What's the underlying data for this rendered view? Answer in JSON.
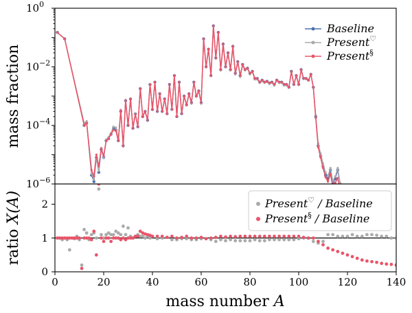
{
  "chart_data": [
    {
      "type": "line",
      "ylabel": "mass fraction",
      "yscale": "log",
      "xlim": [
        0,
        140
      ],
      "ylim": [
        1e-06,
        1
      ],
      "ytick_labels": [
        {
          "base": "10",
          "exp": "0",
          "value": 1
        },
        {
          "base": "10",
          "exp": "−2",
          "value": 0.01
        },
        {
          "base": "10",
          "exp": "−4",
          "value": 0.0001
        },
        {
          "base": "10",
          "exp": "−6",
          "value": 1e-06
        }
      ],
      "legend_position": "top-right",
      "series": [
        {
          "name": "Baseline",
          "sup": "",
          "color": "#4c72b0",
          "x": [
            1,
            4,
            12,
            13,
            15,
            16,
            17,
            18,
            19,
            20,
            21,
            22,
            23,
            24,
            25,
            26,
            27,
            28,
            29,
            30,
            31,
            32,
            33,
            34,
            35,
            36,
            37,
            38,
            39,
            40,
            41,
            42,
            43,
            44,
            45,
            46,
            47,
            48,
            49,
            50,
            51,
            52,
            53,
            54,
            55,
            56,
            57,
            58,
            59,
            60,
            61,
            62,
            63,
            64,
            65,
            66,
            67,
            68,
            69,
            70,
            71,
            72,
            73,
            74,
            75,
            76,
            77,
            78,
            79,
            80,
            81,
            82,
            83,
            84,
            85,
            86,
            87,
            88,
            89,
            90,
            91,
            92,
            93,
            94,
            95,
            96,
            97,
            98,
            99,
            100,
            101,
            102,
            103,
            104,
            105,
            106,
            107,
            108,
            109,
            110,
            111,
            112,
            113,
            114,
            115,
            116,
            117
          ],
          "y": [
            0.15,
            0.09,
            0.0001,
            0.00012,
            2e-06,
            1.2e-06,
            8e-06,
            2.5e-06,
            1.5e-05,
            8e-06,
            3e-05,
            3.5e-05,
            5e-05,
            8e-05,
            7e-05,
            3e-05,
            0.0003,
            2e-05,
            0.0007,
            0.0001,
            0.0008,
            8e-05,
            0.00025,
            9e-05,
            0.0018,
            0.0002,
            0.0003,
            0.00015,
            0.0025,
            0.00035,
            0.003,
            0.0003,
            0.0012,
            0.0003,
            0.0008,
            0.00025,
            0.0025,
            0.00035,
            0.005,
            0.0002,
            0.003,
            0.00025,
            0.001,
            0.0005,
            0.0012,
            0.0006,
            0.003,
            0.001,
            0.0015,
            0.0006,
            0.09,
            0.01,
            0.04,
            0.005,
            0.25,
            0.02,
            0.15,
            0.008,
            0.06,
            0.01,
            0.03,
            0.008,
            0.05,
            0.006,
            0.015,
            0.005,
            0.012,
            0.008,
            0.009,
            0.006,
            0.007,
            0.004,
            0.004,
            0.003,
            0.0035,
            0.003,
            0.0032,
            0.0028,
            0.003,
            0.0025,
            0.0035,
            0.003,
            0.003,
            0.0025,
            0.0025,
            0.002,
            0.007,
            0.0025,
            0.005,
            0.0025,
            0.008,
            0.004,
            0.004,
            0.0035,
            0.0055,
            0.002,
            0.0002,
            2e-05,
            9e-06,
            4e-06,
            2e-06,
            1.5e-06,
            3e-06,
            1e-06,
            1.5e-06,
            3e-06,
            1e-06
          ]
        },
        {
          "name": "Present",
          "sup": "♡",
          "color": "#aaaaaa",
          "x": [
            1,
            4,
            12,
            13,
            15,
            16,
            17,
            18,
            19,
            20,
            21,
            22,
            23,
            24,
            25,
            26,
            27,
            28,
            29,
            30,
            31,
            32,
            33,
            34,
            35,
            36,
            37,
            38,
            39,
            40,
            41,
            42,
            43,
            44,
            45,
            46,
            47,
            48,
            49,
            50,
            51,
            52,
            53,
            54,
            55,
            56,
            57,
            58,
            59,
            60,
            61,
            62,
            63,
            64,
            65,
            66,
            67,
            68,
            69,
            70,
            71,
            72,
            73,
            74,
            75,
            76,
            77,
            78,
            79,
            80,
            81,
            82,
            83,
            84,
            85,
            86,
            87,
            88,
            89,
            90,
            91,
            92,
            93,
            94,
            95,
            96,
            97,
            98,
            99,
            100,
            101,
            102,
            103,
            104,
            105,
            106,
            107,
            108,
            109,
            110,
            111,
            112,
            113,
            114,
            115,
            116,
            117
          ],
          "y": [
            0.15,
            0.09,
            0.00012,
            0.00014,
            2.2e-06,
            1.4e-06,
            8e-06,
            2.8e-06,
            1.7e-05,
            8e-06,
            3.3e-05,
            4e-05,
            5.5e-05,
            9e-05,
            8.5e-05,
            3.5e-05,
            0.00034,
            2.2e-05,
            0.00075,
            0.00011,
            0.00082,
            8.5e-05,
            0.00026,
            9.5e-05,
            0.0019,
            0.00021,
            0.00031,
            0.00016,
            0.0026,
            0.00036,
            0.0029,
            0.0003,
            0.00115,
            0.0003,
            0.00078,
            0.00024,
            0.0024,
            0.00034,
            0.0048,
            0.0002,
            0.0028,
            0.00024,
            0.00095,
            0.00048,
            0.0011,
            0.00055,
            0.0028,
            0.00095,
            0.0014,
            0.00055,
            0.085,
            0.0095,
            0.038,
            0.0048,
            0.24,
            0.019,
            0.14,
            0.0075,
            0.056,
            0.0095,
            0.028,
            0.0075,
            0.046,
            0.0055,
            0.014,
            0.0045,
            0.011,
            0.0075,
            0.0085,
            0.0055,
            0.0065,
            0.0037,
            0.0037,
            0.0028,
            0.0032,
            0.0028,
            0.003,
            0.0026,
            0.0028,
            0.0023,
            0.0033,
            0.0028,
            0.0028,
            0.0023,
            0.0023,
            0.0019,
            0.0065,
            0.0024,
            0.0047,
            0.0024,
            0.0076,
            0.0038,
            0.0038,
            0.0034,
            0.0053,
            0.0019,
            0.00022,
            2.4e-05,
            1.1e-05,
            5e-06,
            2.5e-06,
            1.9e-06,
            3.5e-06,
            1.3e-06,
            1.8e-06,
            3.5e-06,
            1.1e-06
          ]
        },
        {
          "name": "Present",
          "sup": "§",
          "color": "#e8556a",
          "x": [
            1,
            4,
            12,
            13,
            15,
            16,
            17,
            18,
            19,
            20,
            21,
            22,
            23,
            24,
            25,
            26,
            27,
            28,
            29,
            30,
            31,
            32,
            33,
            34,
            35,
            36,
            37,
            38,
            39,
            40,
            41,
            42,
            43,
            44,
            45,
            46,
            47,
            48,
            49,
            50,
            51,
            52,
            53,
            54,
            55,
            56,
            57,
            58,
            59,
            60,
            61,
            62,
            63,
            64,
            65,
            66,
            67,
            68,
            69,
            70,
            71,
            72,
            73,
            74,
            75,
            76,
            77,
            78,
            79,
            80,
            81,
            82,
            83,
            84,
            85,
            86,
            87,
            88,
            89,
            90,
            91,
            92,
            93,
            94,
            95,
            96,
            97,
            98,
            99,
            100,
            101,
            102,
            103,
            104,
            105,
            106,
            107,
            108,
            109,
            110,
            111,
            112,
            113,
            114,
            115,
            116,
            117
          ],
          "y": [
            0.15,
            0.09,
            0.0001,
            0.00012,
            3e-06,
            1.8e-06,
            1e-05,
            4e-06,
            1.6e-05,
            9e-06,
            3e-05,
            3.5e-05,
            5e-05,
            7e-05,
            6.5e-05,
            3e-05,
            0.00032,
            2e-05,
            0.0007,
            0.0001,
            0.0008,
            8e-05,
            0.00024,
            9e-05,
            0.0018,
            0.0002,
            0.0003,
            0.00015,
            0.0025,
            0.00035,
            0.003,
            0.0003,
            0.0012,
            0.0003,
            0.0008,
            0.00025,
            0.0025,
            0.00035,
            0.005,
            0.0002,
            0.003,
            0.00025,
            0.001,
            0.0005,
            0.0012,
            0.0006,
            0.003,
            0.001,
            0.0015,
            0.0006,
            0.09,
            0.01,
            0.04,
            0.005,
            0.25,
            0.02,
            0.15,
            0.008,
            0.06,
            0.01,
            0.03,
            0.008,
            0.05,
            0.006,
            0.015,
            0.005,
            0.012,
            0.008,
            0.009,
            0.006,
            0.007,
            0.004,
            0.004,
            0.003,
            0.0035,
            0.003,
            0.0032,
            0.0028,
            0.003,
            0.0025,
            0.0035,
            0.003,
            0.003,
            0.0025,
            0.0025,
            0.002,
            0.007,
            0.0025,
            0.005,
            0.0025,
            0.008,
            0.004,
            0.004,
            0.0035,
            0.0055,
            0.002,
            0.00018,
            1.8e-05,
            8e-06,
            3.5e-06,
            1.7e-06,
            1.2e-06,
            2.2e-06,
            8e-07,
            1.1e-06,
            1.6e-06,
            6e-07
          ]
        }
      ]
    },
    {
      "type": "scatter",
      "xlabel": "mass number A",
      "ylabel": "ratio X(A)",
      "xlim": [
        0,
        140
      ],
      "ylim": [
        0,
        2.6
      ],
      "xticks": [
        0,
        20,
        40,
        60,
        80,
        100,
        120,
        140
      ],
      "yticks": [
        0,
        1,
        2
      ],
      "reference_line": 1,
      "legend_position": "top-right",
      "series": [
        {
          "name": "Present",
          "sup": "♡",
          "suffix": " / Baseline",
          "color": "#aaaaaa",
          "x": [
            1,
            2,
            3,
            4,
            5,
            6,
            7,
            8,
            9,
            10,
            11,
            12,
            13,
            14,
            15,
            16,
            17,
            18,
            19,
            20,
            21,
            22,
            23,
            24,
            25,
            26,
            27,
            28,
            29,
            30,
            31,
            32,
            33,
            34,
            35,
            36,
            37,
            38,
            39,
            40,
            42,
            44,
            46,
            48,
            50,
            52,
            54,
            56,
            58,
            60,
            62,
            64,
            66,
            68,
            70,
            72,
            74,
            76,
            78,
            80,
            82,
            84,
            86,
            88,
            90,
            92,
            94,
            96,
            98,
            100,
            102,
            104,
            106,
            108,
            110,
            112,
            114,
            116,
            118,
            120,
            122,
            124,
            126,
            128,
            130,
            132,
            134,
            136,
            138,
            140
          ],
          "y": [
            1.0,
            1.0,
            0.95,
            1.0,
            0.95,
            0.65,
            1.0,
            0.98,
            1.05,
            0.95,
            0.2,
            1.25,
            1.15,
            0.95,
            1.1,
            1.15,
            1.0,
            2.45,
            1.1,
            1.0,
            1.1,
            1.15,
            1.1,
            1.1,
            1.2,
            1.15,
            1.1,
            1.35,
            1.1,
            1.3,
            1.05,
            1.0,
            1.05,
            1.1,
            1.05,
            1.05,
            1.0,
            1.05,
            1.0,
            1.05,
            0.98,
            1.0,
            1.02,
            0.95,
            0.95,
            0.98,
            0.98,
            0.95,
            0.95,
            0.98,
            0.98,
            0.95,
            0.9,
            0.95,
            0.92,
            0.95,
            0.92,
            0.92,
            0.92,
            0.92,
            0.95,
            0.92,
            0.92,
            0.95,
            0.95,
            0.95,
            0.95,
            0.95,
            0.95,
            0.98,
            1.0,
            1.0,
            0.9,
            0.85,
            0.9,
            1.1,
            1.1,
            1.05,
            1.05,
            1.05,
            1.1,
            1.05,
            1.05,
            1.1,
            1.1,
            1.08,
            1.05,
            1.05,
            1.0,
            1.0
          ]
        },
        {
          "name": "Present",
          "sup": "§",
          "suffix": " / Baseline",
          "color": "#e8556a",
          "x": [
            1,
            2,
            3,
            4,
            5,
            6,
            7,
            8,
            9,
            10,
            11,
            12,
            13,
            14,
            15,
            16,
            17,
            18,
            19,
            20,
            21,
            22,
            23,
            24,
            25,
            26,
            27,
            28,
            29,
            30,
            31,
            32,
            33,
            34,
            35,
            36,
            37,
            38,
            39,
            40,
            42,
            44,
            46,
            48,
            50,
            52,
            54,
            56,
            58,
            60,
            62,
            64,
            66,
            68,
            70,
            72,
            74,
            76,
            78,
            80,
            82,
            84,
            86,
            88,
            90,
            92,
            94,
            96,
            98,
            100,
            102,
            104,
            106,
            108,
            110,
            112,
            114,
            116,
            118,
            120,
            122,
            124,
            126,
            128,
            130,
            132,
            134,
            136,
            138,
            140
          ],
          "y": [
            1.0,
            1.0,
            1.0,
            1.0,
            1.0,
            1.0,
            1.0,
            1.0,
            1.0,
            1.0,
            0.1,
            1.0,
            1.0,
            1.0,
            0.95,
            1.2,
            0.5,
            2.6,
            1.0,
            0.9,
            1.0,
            1.0,
            0.9,
            1.0,
            1.0,
            1.0,
            0.95,
            1.0,
            0.95,
            1.0,
            1.0,
            1.0,
            1.05,
            1.05,
            1.2,
            1.15,
            1.12,
            1.1,
            1.08,
            1.05,
            1.05,
            1.05,
            1.02,
            1.05,
            1.0,
            1.02,
            1.05,
            1.0,
            1.0,
            1.02,
            0.98,
            1.0,
            1.02,
            1.05,
            1.03,
            1.05,
            1.04,
            1.05,
            1.05,
            1.05,
            1.05,
            1.05,
            1.05,
            1.05,
            1.05,
            1.05,
            1.05,
            1.05,
            1.05,
            1.05,
            1.02,
            1.0,
            1.0,
            0.9,
            0.8,
            0.7,
            0.65,
            0.6,
            0.55,
            0.5,
            0.45,
            0.4,
            0.35,
            0.32,
            0.3,
            0.28,
            0.25,
            0.23,
            0.22,
            0.2
          ]
        }
      ]
    }
  ]
}
